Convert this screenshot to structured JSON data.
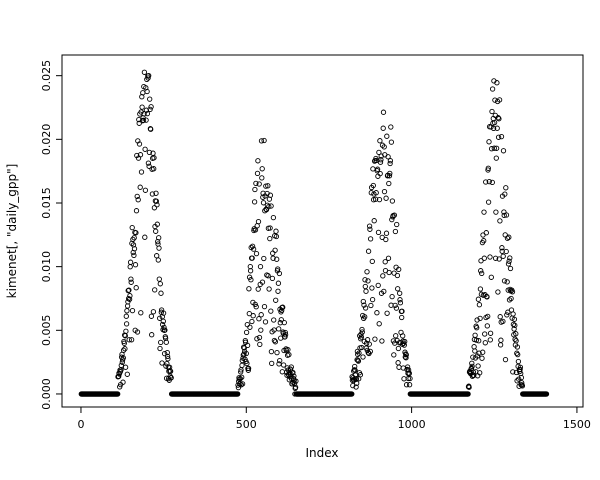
{
  "chart_data": {
    "type": "scatter",
    "title": "",
    "xlabel": "Index",
    "ylabel": "kimenet[, \"daily_gpp\"]",
    "x_ticks": [
      0,
      500,
      1000,
      1500
    ],
    "y_ticks": [
      0.0,
      0.005,
      0.01,
      0.015,
      0.02,
      0.025
    ],
    "x_data_range": [
      1,
      1460
    ],
    "ylim": [
      0,
      0.0256
    ],
    "axis_expansion": 0.04,
    "n_points": 1460,
    "na_after": 1408,
    "marker": "open-circle",
    "point_color": "#000000",
    "background": "#ffffff",
    "grid": false,
    "legend": "none",
    "seed": 20,
    "description": "Daily GPP time series over ~4 annual cycles; values are 0 in dormant seasons and rise to seasonal peaks.",
    "seasons": [
      {
        "start": 112,
        "peak_x": 196,
        "end": 274,
        "peak_y": 0.0256,
        "drop_prob": 0.18
      },
      {
        "start": 475,
        "peak_x": 548,
        "end": 650,
        "peak_y": 0.0205,
        "drop_prob": 0.45
      },
      {
        "start": 820,
        "peak_x": 918,
        "end": 995,
        "peak_y": 0.0254,
        "drop_prob": 0.4
      },
      {
        "start": 1172,
        "peak_x": 1255,
        "end": 1335,
        "peak_y": 0.0246,
        "drop_prob": 0.35
      }
    ]
  }
}
